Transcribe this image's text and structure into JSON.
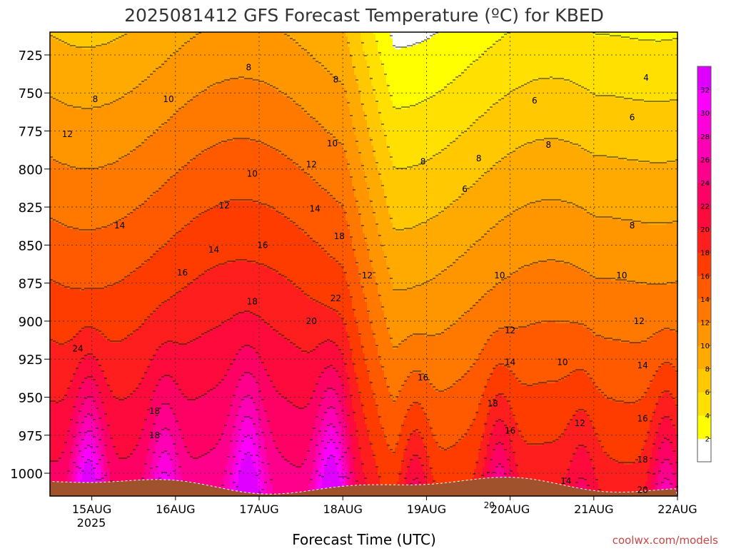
{
  "chart_data": {
    "type": "heatmap",
    "title": "2025081412 GFS Forecast Temperature (ºC) for KBED",
    "xlabel": "Forecast Time (UTC)",
    "ylabel": "",
    "watermark": "coolwx.com/models",
    "x_ticks": [
      "15AUG",
      "16AUG",
      "17AUG",
      "18AUG",
      "19AUG",
      "20AUG",
      "21AUG",
      "22AUG"
    ],
    "x_year": "2025",
    "xlim": [
      "2025-08-14 12:00",
      "2025-08-22 00:00"
    ],
    "y_ticks": [
      725,
      750,
      775,
      800,
      825,
      850,
      875,
      900,
      925,
      950,
      975,
      1000
    ],
    "ylim": [
      1015,
      710
    ],
    "y_units": "hPa",
    "colorbar": {
      "ticks": [
        2,
        4,
        6,
        8,
        10,
        12,
        14,
        16,
        18,
        20,
        22,
        24,
        26,
        28,
        30,
        32
      ],
      "colors": [
        "#ffffff",
        "#ffff00",
        "#ffe000",
        "#ffc800",
        "#ffaa00",
        "#ff9600",
        "#ff7800",
        "#ff5a00",
        "#ff3c00",
        "#ff1e1e",
        "#ff0a3c",
        "#ff0064",
        "#ff008c",
        "#ff00b4",
        "#ff00dc",
        "#ff00ff",
        "#e000ff"
      ]
    },
    "contour_labels": [
      {
        "v": "8",
        "x": "2025-08-16 21:00",
        "y": 735
      },
      {
        "v": "8",
        "x": "2025-08-17 22:00",
        "y": 743
      },
      {
        "v": "8",
        "x": "2025-08-15 01:00",
        "y": 756
      },
      {
        "v": "10",
        "x": "2025-08-15 22:00",
        "y": 756
      },
      {
        "v": "12",
        "x": "2025-08-14 17:00",
        "y": 779
      },
      {
        "v": "10",
        "x": "2025-08-17 21:00",
        "y": 785
      },
      {
        "v": "12",
        "x": "2025-08-17 15:00",
        "y": 799
      },
      {
        "v": "10",
        "x": "2025-08-16 22:00",
        "y": 805
      },
      {
        "v": "8",
        "x": "2025-08-18 23:00",
        "y": 797
      },
      {
        "v": "12",
        "x": "2025-08-16 14:00",
        "y": 826
      },
      {
        "v": "14",
        "x": "2025-08-17 16:00",
        "y": 828
      },
      {
        "v": "14",
        "x": "2025-08-15 08:00",
        "y": 839
      },
      {
        "v": "18",
        "x": "2025-08-17 23:00",
        "y": 846
      },
      {
        "v": "16",
        "x": "2025-08-17 01:00",
        "y": 852
      },
      {
        "v": "14",
        "x": "2025-08-16 11:00",
        "y": 855
      },
      {
        "v": "16",
        "x": "2025-08-16 02:00",
        "y": 870
      },
      {
        "v": "12",
        "x": "2025-08-18 07:00",
        "y": 872
      },
      {
        "v": "18",
        "x": "2025-08-16 22:00",
        "y": 889
      },
      {
        "v": "22",
        "x": "2025-08-17 22:00",
        "y": 887
      },
      {
        "v": "20",
        "x": "2025-08-17 15:00",
        "y": 902
      },
      {
        "v": "24",
        "x": "2025-08-14 20:00",
        "y": 920
      },
      {
        "v": "18",
        "x": "2025-08-15 18:00",
        "y": 961
      },
      {
        "v": "18",
        "x": "2025-08-15 18:00",
        "y": 977
      },
      {
        "v": "16",
        "x": "2025-08-18 23:00",
        "y": 939
      },
      {
        "v": "6",
        "x": "2025-08-19 11:00",
        "y": 815
      },
      {
        "v": "8",
        "x": "2025-08-19 15:00",
        "y": 795
      },
      {
        "v": "8",
        "x": "2025-08-20 11:00",
        "y": 786
      },
      {
        "v": "6",
        "x": "2025-08-20 07:00",
        "y": 757
      },
      {
        "v": "4",
        "x": "2025-08-21 15:00",
        "y": 742
      },
      {
        "v": "6",
        "x": "2025-08-21 11:00",
        "y": 768
      },
      {
        "v": "10",
        "x": "2025-08-19 21:00",
        "y": 872
      },
      {
        "v": "10",
        "x": "2025-08-21 08:00",
        "y": 872
      },
      {
        "v": "8",
        "x": "2025-08-21 11:00",
        "y": 839
      },
      {
        "v": "12",
        "x": "2025-08-20 00:00",
        "y": 908
      },
      {
        "v": "12",
        "x": "2025-08-21 13:00",
        "y": 902
      },
      {
        "v": "14",
        "x": "2025-08-20 00:00",
        "y": 929
      },
      {
        "v": "10",
        "x": "2025-08-20 15:00",
        "y": 929
      },
      {
        "v": "14",
        "x": "2025-08-21 14:00",
        "y": 931
      },
      {
        "v": "18",
        "x": "2025-08-19 19:00",
        "y": 956
      },
      {
        "v": "16",
        "x": "2025-08-20 00:00",
        "y": 974
      },
      {
        "v": "12",
        "x": "2025-08-20 20:00",
        "y": 969
      },
      {
        "v": "16",
        "x": "2025-08-21 14:00",
        "y": 966
      },
      {
        "v": "18",
        "x": "2025-08-21 14:00",
        "y": 993
      },
      {
        "v": "14",
        "x": "2025-08-20 16:00",
        "y": 1007
      },
      {
        "v": "20",
        "x": "2025-08-19 18:00",
        "y": 1023
      },
      {
        "v": "20",
        "x": "2025-08-21 14:00",
        "y": 1013
      }
    ]
  }
}
